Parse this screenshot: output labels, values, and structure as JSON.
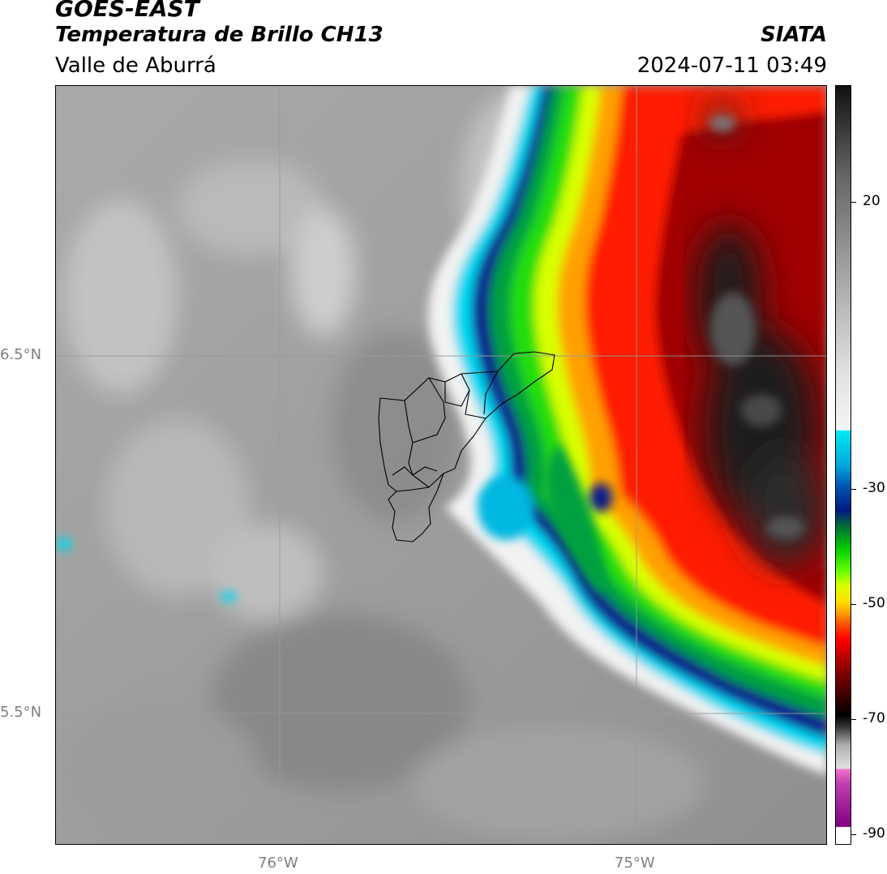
{
  "header": {
    "title1": "GOES-EAST",
    "title2": "Temperatura de Brillo CH13",
    "subtitle": "Valle de Aburrá",
    "org": "SIATA",
    "timestamp": "2024-07-11 03:49"
  },
  "map": {
    "lat_labels": [
      "6.5°N",
      "5.5°N"
    ],
    "lon_labels": [
      "76°W",
      "75°W"
    ],
    "gridline_color": "#9a9a9a",
    "boundary_color": "#000000"
  },
  "colorbar": {
    "ticks": [
      "20",
      "-30",
      "-50",
      "-70",
      "-90"
    ],
    "palette": [
      "#ffffff",
      "#8b1a8b",
      "#e060c0",
      "#d8d8d8",
      "#111111",
      "#8b0000",
      "#ff0000",
      "#ff8c00",
      "#ffff00",
      "#00cc00",
      "#00008b",
      "#00e5ff",
      "#ffffff",
      "#111111"
    ]
  }
}
